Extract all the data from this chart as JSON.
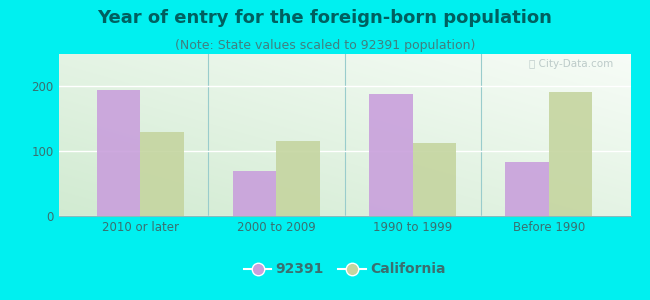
{
  "title": "Year of entry for the foreign-born population",
  "subtitle": "(Note: State values scaled to 92391 population)",
  "categories": [
    "2010 or later",
    "2000 to 2009",
    "1990 to 1999",
    "Before 1990"
  ],
  "values_92391": [
    195,
    70,
    188,
    83
  ],
  "values_california": [
    130,
    115,
    113,
    192
  ],
  "bar_color_92391": "#c9a0dc",
  "bar_color_california": "#c5d5a0",
  "background_outer": "#00f0f0",
  "background_inner_topleft": "#d0eedc",
  "background_inner_topright": "#e8f5f0",
  "background_inner_bottom": "#c8efe8",
  "title_color": "#006060",
  "subtitle_color": "#408080",
  "tick_color": "#3a7070",
  "ylim": [
    0,
    250
  ],
  "yticks": [
    0,
    100,
    200
  ],
  "legend_label_92391": "92391",
  "legend_label_california": "California",
  "bar_width": 0.32,
  "title_fontsize": 13,
  "subtitle_fontsize": 9,
  "tick_fontsize": 8.5,
  "legend_fontsize": 10
}
